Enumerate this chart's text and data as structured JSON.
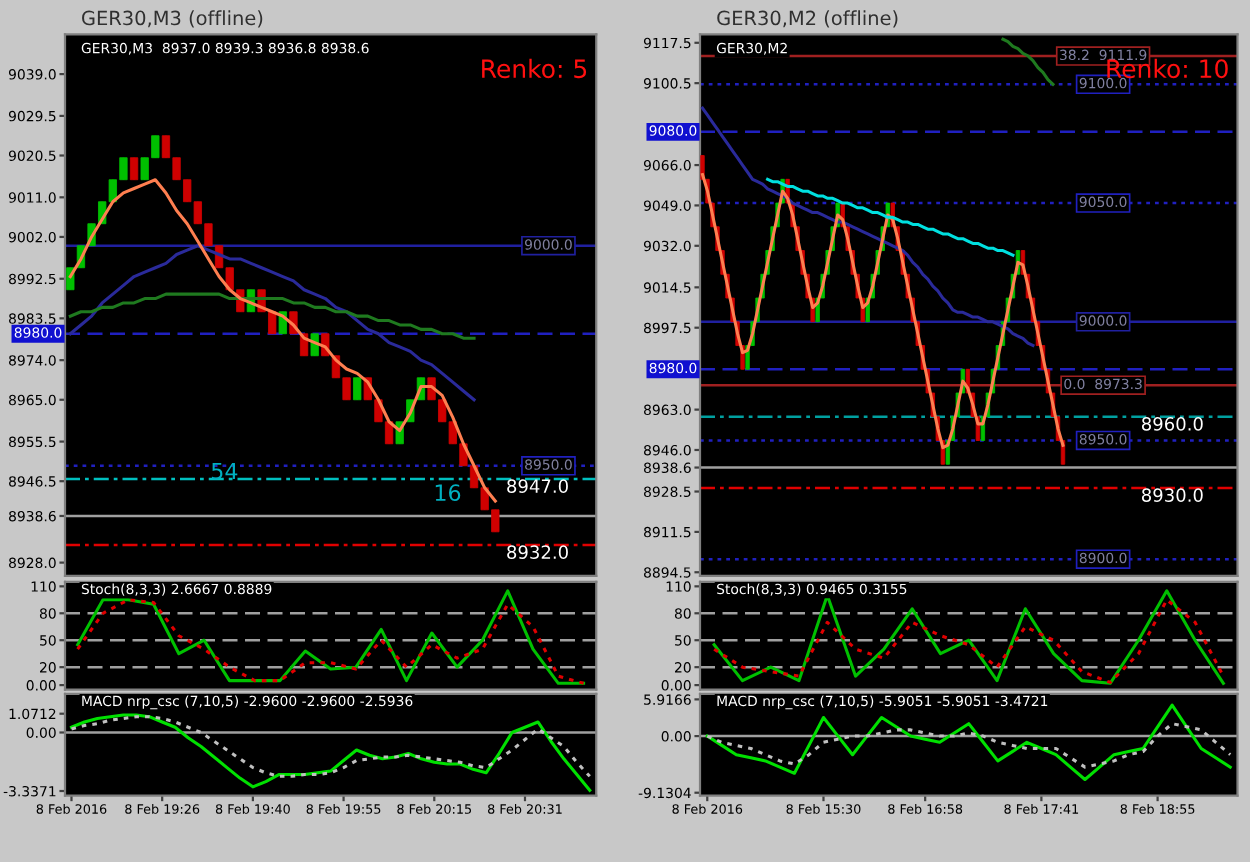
{
  "chart_data": [
    {
      "type": "candlestick",
      "title": "GER30,M3 (offline)",
      "annotations": [
        "GER30,M3  8937.0 8939.3 8936.8 8938.6",
        "Renko: 5",
        "54",
        "16"
      ],
      "categories": [
        null,
        null,
        null,
        null,
        null,
        null,
        null,
        null,
        null,
        null,
        null,
        null,
        null,
        null,
        null,
        null,
        null,
        null,
        null,
        null,
        null,
        null,
        null,
        null,
        null,
        null,
        null,
        null,
        null,
        null,
        null,
        null,
        null,
        null,
        null,
        null,
        null,
        null,
        null,
        null,
        null
      ],
      "ohlc": [
        [
          8990,
          8995,
          8990,
          8995
        ],
        [
          8995,
          9000,
          8995,
          9000
        ],
        [
          9000,
          9005,
          9000,
          9005
        ],
        [
          9005,
          9010,
          9005,
          9010
        ],
        [
          9010,
          9015,
          9010,
          9015
        ],
        [
          9015,
          9020,
          9015,
          9020
        ],
        [
          9020,
          9020,
          9015,
          9015
        ],
        [
          9015,
          9020,
          9015,
          9020
        ],
        [
          9020,
          9025,
          9020,
          9025
        ],
        [
          9025,
          9025,
          9020,
          9020
        ],
        [
          9020,
          9020,
          9015,
          9015
        ],
        [
          9015,
          9015,
          9010,
          9010
        ],
        [
          9010,
          9010,
          9005,
          9005
        ],
        [
          9005,
          9005,
          9000,
          9000
        ],
        [
          9000,
          9000,
          8995,
          8995
        ],
        [
          8995,
          8995,
          8990,
          8990
        ],
        [
          8990,
          8990,
          8985,
          8985
        ],
        [
          8985,
          8990,
          8985,
          8990
        ],
        [
          8990,
          8990,
          8985,
          8985
        ],
        [
          8985,
          8985,
          8980,
          8980
        ],
        [
          8980,
          8985,
          8980,
          8985
        ],
        [
          8985,
          8985,
          8980,
          8980
        ],
        [
          8980,
          8980,
          8975,
          8975
        ],
        [
          8975,
          8980,
          8975,
          8980
        ],
        [
          8980,
          8980,
          8975,
          8975
        ],
        [
          8975,
          8975,
          8970,
          8970
        ],
        [
          8970,
          8970,
          8965,
          8965
        ],
        [
          8965,
          8970,
          8965,
          8970
        ],
        [
          8970,
          8970,
          8965,
          8965
        ],
        [
          8965,
          8965,
          8960,
          8960
        ],
        [
          8960,
          8960,
          8955,
          8955
        ],
        [
          8955,
          8960,
          8955,
          8960
        ],
        [
          8960,
          8965,
          8960,
          8965
        ],
        [
          8965,
          8970,
          8965,
          8970
        ],
        [
          8970,
          8970,
          8965,
          8965
        ],
        [
          8965,
          8965,
          8960,
          8960
        ],
        [
          8960,
          8960,
          8955,
          8955
        ],
        [
          8955,
          8955,
          8950,
          8950
        ],
        [
          8950,
          8950,
          8945,
          8945
        ],
        [
          8945,
          8945,
          8940,
          8940
        ],
        [
          8940,
          8940,
          8935,
          8935
        ]
      ],
      "colors": [
        "#00c000",
        "#00c000",
        "#00c000",
        "#00c000",
        "#00c000",
        "#00c000",
        "#d00000",
        "#00c000",
        "#00c000",
        "#d00000",
        "#d00000",
        "#d00000",
        "#d00000",
        "#d00000",
        "#d00000",
        "#d00000",
        "#d00000",
        "#00c000",
        "#d00000",
        "#d00000",
        "#00c000",
        "#d00000",
        "#d00000",
        "#00c000",
        "#d00000",
        "#d00000",
        "#d00000",
        "#00c000",
        "#d00000",
        "#d00000",
        "#d00000",
        "#00c000",
        "#00c000",
        "#00c000",
        "#d00000",
        "#d00000",
        "#d00000",
        "#d00000",
        "#d00000",
        "#d00000",
        "#d00000"
      ],
      "series": [
        {
          "type": "line",
          "color": "#2a2a9a",
          "values": [
            8980,
            8982,
            8984,
            8987,
            8989,
            8991,
            8993,
            8994,
            8995,
            8996,
            8998,
            8999,
            9000,
            8999,
            8998,
            8997,
            8997,
            8996,
            8995,
            8994,
            8993,
            8992,
            8990,
            8989,
            8988,
            8986,
            8985,
            8983,
            8981,
            8980,
            8978,
            8977,
            8976,
            8974,
            8973,
            8971,
            8969,
            8967,
            8965,
            null,
            null
          ]
        },
        {
          "type": "line",
          "color": "#1f7a1f",
          "values": [
            8984,
            8985,
            8985,
            8986,
            8986,
            8987,
            8987,
            8988,
            8988,
            8989,
            8989,
            8989,
            8989,
            8989,
            8989,
            8988,
            8988,
            8988,
            8988,
            8988,
            8988,
            8987,
            8987,
            8986,
            8986,
            8985,
            8985,
            8984,
            8984,
            8983,
            8983,
            8982,
            8982,
            8981,
            8981,
            8980,
            8980,
            8979,
            8979,
            null,
            null
          ]
        },
        {
          "type": "line",
          "color": "#ff7f50",
          "values": [
            8993,
            8997,
            9002,
            9006,
            9010,
            9012,
            9013,
            9014,
            9015,
            9012,
            9008,
            9005,
            9001,
            8997,
            8993,
            8990,
            8988,
            8987,
            8986,
            8985,
            8984,
            8982,
            8979,
            8978,
            8977,
            8974,
            8972,
            8971,
            8969,
            8965,
            8960,
            8958,
            8962,
            8968,
            8968,
            8966,
            8961,
            8955,
            8950,
            8945,
            8942
          ]
        }
      ],
      "ylim": [
        8925,
        9048
      ],
      "yticks": [
        {
          "value": 8928,
          "label": "8928.0"
        },
        {
          "value": 8938.6,
          "label": "8938.6"
        },
        {
          "value": 8946.5,
          "label": "8946.5"
        },
        {
          "value": 8955.5,
          "label": "8955.5"
        },
        {
          "value": 8965,
          "label": "8965.0"
        },
        {
          "value": 8974,
          "label": "8974.0"
        },
        {
          "value": 8983.5,
          "label": "8983.5"
        },
        {
          "value": 8992.5,
          "label": "8992.5"
        },
        {
          "value": 9002,
          "label": "9002.0"
        },
        {
          "value": 9011,
          "label": "9011.0"
        },
        {
          "value": 9020.5,
          "label": "9020.5"
        },
        {
          "value": 9029.5,
          "label": "9029.5"
        },
        {
          "value": 9039,
          "label": "9039.0"
        }
      ],
      "tick_labels": "y",
      "ref_lines": [
        {
          "axis": "y",
          "value": 9000,
          "label": "9000.0",
          "color": "#2020a0",
          "line_style": "solid"
        },
        {
          "axis": "y",
          "value": 8980,
          "label": "8980.0",
          "color": "#2020c0",
          "line_style": "dashed"
        },
        {
          "axis": "y",
          "value": 8950,
          "label": "8950.0",
          "color": "#2020c0",
          "line_style": "dotted"
        },
        {
          "axis": "y",
          "value": 8947,
          "label": "8947.0",
          "color": "#00c0c0",
          "line_style": "dashdot"
        },
        {
          "axis": "y",
          "value": 8938.6,
          "color": "#a0a0a0",
          "line_style": "solid"
        },
        {
          "axis": "y",
          "value": 8932,
          "label": "8932.0",
          "color": "#e00000",
          "line_style": "dashdot"
        }
      ]
    },
    {
      "type": "candlestick",
      "title": "GER30,M2 (offline)",
      "annotations": [
        "GER30,M2",
        "Renko: 10"
      ],
      "categories": [
        null,
        null,
        null,
        null,
        null,
        null,
        null,
        null,
        null,
        null,
        null,
        null,
        null,
        null,
        null,
        null,
        null,
        null,
        null,
        null,
        null,
        null,
        null,
        null,
        null,
        null,
        null,
        null,
        null,
        null,
        null,
        null,
        null,
        null,
        null,
        null,
        null,
        null,
        null,
        null,
        null,
        null,
        null,
        null,
        null,
        null,
        null,
        null,
        null,
        null,
        null,
        null,
        null,
        null,
        null,
        null,
        null,
        null,
        null,
        null,
        null,
        null,
        null,
        null,
        null,
        null,
        null,
        null,
        null,
        null,
        null,
        null,
        null
      ],
      "ohlc": [
        [
          9070,
          9070,
          9060,
          9060
        ],
        [
          9060,
          9060,
          9050,
          9050
        ],
        [
          9050,
          9050,
          9040,
          9040
        ],
        [
          9040,
          9040,
          9030,
          9030
        ],
        [
          9030,
          9030,
          9020,
          9020
        ],
        [
          9020,
          9020,
          9010,
          9010
        ],
        [
          9010,
          9010,
          9000,
          9000
        ],
        [
          9000,
          9000,
          8990,
          8990
        ],
        [
          8990,
          8990,
          8980,
          8980
        ],
        [
          8980,
          8990,
          8980,
          8990
        ],
        [
          8990,
          9000,
          8990,
          9000
        ],
        [
          9000,
          9010,
          9000,
          9010
        ],
        [
          9010,
          9020,
          9010,
          9020
        ],
        [
          9020,
          9030,
          9020,
          9030
        ],
        [
          9030,
          9040,
          9030,
          9040
        ],
        [
          9040,
          9050,
          9040,
          9050
        ],
        [
          9050,
          9060,
          9050,
          9060
        ],
        [
          9060,
          9060,
          9050,
          9050
        ],
        [
          9050,
          9050,
          9040,
          9040
        ],
        [
          9040,
          9040,
          9030,
          9030
        ],
        [
          9030,
          9030,
          9020,
          9020
        ],
        [
          9020,
          9020,
          9010,
          9010
        ],
        [
          9010,
          9010,
          9000,
          9000
        ],
        [
          9000,
          9010,
          9000,
          9010
        ],
        [
          9010,
          9020,
          9010,
          9020
        ],
        [
          9020,
          9030,
          9020,
          9030
        ],
        [
          9030,
          9040,
          9030,
          9040
        ],
        [
          9040,
          9050,
          9040,
          9050
        ],
        [
          9050,
          9050,
          9040,
          9040
        ],
        [
          9040,
          9040,
          9030,
          9030
        ],
        [
          9030,
          9030,
          9020,
          9020
        ],
        [
          9020,
          9020,
          9010,
          9010
        ],
        [
          9010,
          9010,
          9000,
          9000
        ],
        [
          9000,
          9010,
          9000,
          9010
        ],
        [
          9010,
          9020,
          9010,
          9020
        ],
        [
          9020,
          9030,
          9020,
          9030
        ],
        [
          9030,
          9040,
          9030,
          9040
        ],
        [
          9040,
          9050,
          9040,
          9050
        ],
        [
          9050,
          9050,
          9040,
          9040
        ],
        [
          9040,
          9040,
          9030,
          9030
        ],
        [
          9030,
          9030,
          9020,
          9020
        ],
        [
          9020,
          9020,
          9010,
          9010
        ],
        [
          9010,
          9010,
          9000,
          9000
        ],
        [
          9000,
          9000,
          8990,
          8990
        ],
        [
          8990,
          8990,
          8980,
          8980
        ],
        [
          8980,
          8980,
          8970,
          8970
        ],
        [
          8970,
          8970,
          8960,
          8960
        ],
        [
          8960,
          8960,
          8950,
          8950
        ],
        [
          8950,
          8950,
          8940,
          8940
        ],
        [
          8940,
          8950,
          8940,
          8950
        ],
        [
          8950,
          8960,
          8950,
          8960
        ],
        [
          8960,
          8970,
          8960,
          8970
        ],
        [
          8970,
          8980,
          8970,
          8980
        ],
        [
          8980,
          8980,
          8970,
          8970
        ],
        [
          8970,
          8970,
          8960,
          8960
        ],
        [
          8960,
          8960,
          8950,
          8950
        ],
        [
          8950,
          8960,
          8950,
          8960
        ],
        [
          8960,
          8970,
          8960,
          8970
        ],
        [
          8970,
          8980,
          8970,
          8980
        ],
        [
          8980,
          8990,
          8980,
          8990
        ],
        [
          8990,
          9000,
          8990,
          9000
        ],
        [
          9000,
          9010,
          9000,
          9010
        ],
        [
          9010,
          9020,
          9010,
          9020
        ],
        [
          9020,
          9030,
          9020,
          9030
        ],
        [
          9030,
          9030,
          9020,
          9020
        ],
        [
          9020,
          9020,
          9010,
          9010
        ],
        [
          9010,
          9010,
          9000,
          9000
        ],
        [
          9000,
          9000,
          8990,
          8990
        ],
        [
          8990,
          8990,
          8980,
          8980
        ],
        [
          8980,
          8980,
          8970,
          8970
        ],
        [
          8970,
          8970,
          8960,
          8960
        ],
        [
          8960,
          8960,
          8950,
          8950
        ],
        [
          8950,
          8950,
          8940,
          8940
        ]
      ],
      "colors": [
        "#d00000",
        "#d00000",
        "#d00000",
        "#d00000",
        "#d00000",
        "#d00000",
        "#d00000",
        "#d00000",
        "#d00000",
        "#00c000",
        "#00c000",
        "#00c000",
        "#00c000",
        "#00c000",
        "#00c000",
        "#00c000",
        "#00c000",
        "#d00000",
        "#d00000",
        "#d00000",
        "#d00000",
        "#d00000",
        "#d00000",
        "#00c000",
        "#00c000",
        "#00c000",
        "#00c000",
        "#00c000",
        "#d00000",
        "#d00000",
        "#d00000",
        "#d00000",
        "#d00000",
        "#00c000",
        "#00c000",
        "#00c000",
        "#00c000",
        "#00c000",
        "#d00000",
        "#d00000",
        "#d00000",
        "#d00000",
        "#d00000",
        "#d00000",
        "#d00000",
        "#d00000",
        "#d00000",
        "#d00000",
        "#d00000",
        "#00c000",
        "#00c000",
        "#00c000",
        "#00c000",
        "#d00000",
        "#d00000",
        "#d00000",
        "#00c000",
        "#00c000",
        "#00c000",
        "#00c000",
        "#00c000",
        "#00c000",
        "#00c000",
        "#00c000",
        "#d00000",
        "#d00000",
        "#d00000",
        "#d00000",
        "#d00000",
        "#d00000",
        "#d00000",
        "#d00000",
        "#d00000"
      ],
      "series": [
        {
          "type": "line",
          "color": "#2a2a9a",
          "values": [
            9090,
            9087,
            9084,
            9081,
            9078,
            9075,
            9072,
            9069,
            9066,
            9063,
            9060,
            9059,
            9058,
            9056,
            9055,
            9054,
            9053,
            9052,
            9050,
            9049,
            9048,
            9047,
            9046,
            9046,
            9045,
            9044,
            9043,
            9042,
            9042,
            9041,
            9040,
            9039,
            9038,
            9037,
            9036,
            9035,
            9034,
            9033,
            9032,
            9031,
            9030,
            9028,
            9025,
            9023,
            9020,
            9018,
            9015,
            9013,
            9010,
            9008,
            9005,
            9004,
            9004,
            9003,
            9002,
            9002,
            9001,
            9000,
            9000,
            8999,
            8998,
            8997,
            8995,
            8994,
            8993,
            8991,
            8990,
            null,
            null,
            null,
            null,
            null,
            null
          ]
        },
        {
          "type": "line",
          "color": "#1f7a1f",
          "values": [
            null,
            null,
            null,
            null,
            null,
            null,
            null,
            null,
            null,
            null,
            null,
            null,
            null,
            null,
            null,
            null,
            null,
            null,
            null,
            null,
            null,
            null,
            null,
            null,
            null,
            null,
            null,
            null,
            null,
            null,
            null,
            null,
            null,
            null,
            null,
            null,
            null,
            null,
            null,
            null,
            null,
            null,
            null,
            null,
            null,
            null,
            null,
            null,
            null,
            null,
            null,
            null,
            null,
            null,
            null,
            null,
            null,
            null,
            null,
            null,
            9119,
            9118,
            9116,
            9115,
            9113,
            9112,
            9110,
            9107,
            9105,
            9102,
            9100,
            null,
            null
          ]
        },
        {
          "type": "line",
          "color": "#ff7f50",
          "values": [
            9062,
            9055,
            9045,
            9035,
            9025,
            9015,
            9005,
            8995,
            8987,
            8988,
            8995,
            9005,
            9015,
            9025,
            9035,
            9045,
            9055,
            9052,
            9045,
            9035,
            9025,
            9015,
            9006,
            9008,
            9015,
            9025,
            9035,
            9045,
            9043,
            9035,
            9025,
            9015,
            9006,
            9008,
            9015,
            9025,
            9035,
            9045,
            9043,
            9035,
            9025,
            9015,
            9005,
            8995,
            8985,
            8975,
            8965,
            8955,
            8947,
            8948,
            8955,
            8965,
            8975,
            8972,
            8965,
            8957,
            8957,
            8965,
            8975,
            8985,
            8995,
            9005,
            9015,
            9025,
            9024,
            9015,
            9005,
            8995,
            8985,
            8975,
            8965,
            8955,
            8948
          ]
        },
        {
          "type": "line",
          "color": "#00e0e0",
          "values": [
            null,
            null,
            null,
            null,
            null,
            null,
            null,
            null,
            null,
            null,
            null,
            null,
            null,
            9060,
            9059,
            9059,
            9058,
            9057,
            9057,
            9056,
            9055,
            9055,
            9054,
            9053,
            9053,
            9052,
            9052,
            9051,
            9050,
            9050,
            9049,
            9048,
            9048,
            9047,
            9046,
            9046,
            9045,
            9044,
            9044,
            9043,
            9042,
            9042,
            9041,
            9041,
            9040,
            9039,
            9039,
            9038,
            9037,
            9037,
            9036,
            9035,
            9035,
            9034,
            9033,
            9033,
            9032,
            9031,
            9031,
            9030,
            9030,
            9029,
            9028,
            null,
            null,
            null,
            null,
            null,
            null,
            null,
            null,
            null,
            null
          ]
        }
      ],
      "ylim": [
        8893,
        9121
      ],
      "yticks": [
        {
          "value": 8894.5,
          "label": "8894.5"
        },
        {
          "value": 8911.5,
          "label": "8911.5"
        },
        {
          "value": 8928.5,
          "label": "8928.5"
        },
        {
          "value": 8938.6,
          "label": "8938.6"
        },
        {
          "value": 8946,
          "label": "8946.0"
        },
        {
          "value": 8963,
          "label": "8963.0"
        },
        {
          "value": 8997.5,
          "label": "8997.5"
        },
        {
          "value": 9014.5,
          "label": "9014.5"
        },
        {
          "value": 9032,
          "label": "9032.0"
        },
        {
          "value": 9049,
          "label": "9049.0"
        },
        {
          "value": 9066,
          "label": "9066.0"
        },
        {
          "value": 9100.5,
          "label": "9100.5"
        },
        {
          "value": 9117.5,
          "label": "9117.5"
        }
      ],
      "tick_labels": "y",
      "ref_lines": [
        {
          "axis": "y",
          "value": 9111.9,
          "label": "38.2  9111.9",
          "color": "#a02020",
          "line_style": "solid"
        },
        {
          "axis": "y",
          "value": 9100,
          "label": "9100.0",
          "color": "#2020c0",
          "line_style": "dotted"
        },
        {
          "axis": "y",
          "value": 9080,
          "label": "9080.0",
          "color": "#2020c0",
          "line_style": "dashed"
        },
        {
          "axis": "y",
          "value": 9050,
          "label": "9050.0",
          "color": "#2020c0",
          "line_style": "dotted"
        },
        {
          "axis": "y",
          "value": 9000,
          "label": "9000.0",
          "color": "#2020a0",
          "line_style": "solid"
        },
        {
          "axis": "y",
          "value": 8980,
          "label": "8980.0",
          "color": "#2020c0",
          "line_style": "dashed"
        },
        {
          "axis": "y",
          "value": 8973.3,
          "label": "0.0  8973.3",
          "color": "#a02020",
          "line_style": "solid"
        },
        {
          "axis": "y",
          "value": 8960,
          "label": "8960.0",
          "color": "#00a0a0",
          "line_style": "dashdot"
        },
        {
          "axis": "y",
          "value": 8950,
          "label": "8950.0",
          "color": "#2020c0",
          "line_style": "dotted"
        },
        {
          "axis": "y",
          "value": 8938.6,
          "color": "#a0a0a0",
          "line_style": "solid"
        },
        {
          "axis": "y",
          "value": 8930,
          "label": "8930.0",
          "color": "#e00000",
          "line_style": "dashdot"
        },
        {
          "axis": "y",
          "value": 8900,
          "label": "8900.0",
          "color": "#2020c0",
          "line_style": "dotted"
        }
      ]
    },
    {
      "type": "line",
      "annotations": [
        "Stoch(8,3,3) 2.6667 0.8889"
      ],
      "categories": [
        null,
        null,
        null,
        null,
        null,
        null,
        null,
        null,
        null,
        null,
        null,
        null,
        null,
        null,
        null,
        null,
        null,
        null,
        null,
        null,
        null
      ],
      "series": [
        {
          "color": "#00c000",
          "values": [
            45,
            95,
            95,
            90,
            35,
            50,
            5,
            5,
            5,
            38,
            18,
            20,
            62,
            5,
            58,
            20,
            50,
            105,
            40,
            2,
            2
          ]
        },
        {
          "color": "#e00000",
          "line_style": "dotted",
          "values": [
            40,
            80,
            95,
            92,
            55,
            40,
            20,
            5,
            5,
            25,
            25,
            18,
            50,
            20,
            45,
            30,
            40,
            90,
            65,
            10,
            2
          ]
        }
      ],
      "ylim": [
        -5,
        115
      ],
      "yticks": [
        {
          "value": 0,
          "label": "0.00"
        },
        20,
        50,
        80,
        110
      ],
      "tick_labels": "y",
      "ref_lines": [
        {
          "axis": "y",
          "value": 20,
          "color": "#a0a0a0",
          "line_style": "dashed"
        },
        {
          "axis": "y",
          "value": 50,
          "color": "#a0a0a0",
          "line_style": "dashed"
        },
        {
          "axis": "y",
          "value": 80,
          "color": "#a0a0a0",
          "line_style": "dashed"
        }
      ]
    },
    {
      "type": "line",
      "annotations": [
        "Stoch(8,3,3) 0.9465 0.3155"
      ],
      "categories": [
        null,
        null,
        null,
        null,
        null,
        null,
        null,
        null,
        null,
        null,
        null,
        null,
        null,
        null,
        null,
        null,
        null,
        null,
        null
      ],
      "series": [
        {
          "color": "#00c000",
          "values": [
            45,
            5,
            20,
            5,
            100,
            10,
            40,
            85,
            35,
            50,
            5,
            85,
            35,
            5,
            2,
            50,
            105,
            50,
            2
          ]
        },
        {
          "color": "#e00000",
          "line_style": "dotted",
          "values": [
            40,
            20,
            15,
            10,
            70,
            40,
            30,
            70,
            55,
            45,
            20,
            65,
            50,
            15,
            3,
            35,
            95,
            70,
            10
          ]
        }
      ],
      "ylim": [
        -5,
        115
      ],
      "yticks": [
        {
          "value": 0,
          "label": "0.00"
        },
        20,
        50,
        80,
        110
      ],
      "tick_labels": "y",
      "ref_lines": [
        {
          "axis": "y",
          "value": 20,
          "color": "#a0a0a0",
          "line_style": "dashed"
        },
        {
          "axis": "y",
          "value": 50,
          "color": "#a0a0a0",
          "line_style": "dashed"
        },
        {
          "axis": "y",
          "value": 80,
          "color": "#a0a0a0",
          "line_style": "dashed"
        }
      ]
    },
    {
      "type": "line",
      "annotations": [
        "MACD nrp_csc (7,10,5) -2.9600 -2.9600 -2.5936"
      ],
      "categories": [
        "8 Feb 2016",
        null,
        null,
        null,
        null,
        null,
        null,
        "8 Feb 19:26",
        null,
        null,
        null,
        null,
        null,
        null,
        "8 Feb 19:40",
        null,
        null,
        null,
        null,
        null,
        null,
        "8 Feb 19:55",
        null,
        null,
        null,
        null,
        null,
        null,
        "8 Feb 20:15",
        null,
        null,
        null,
        null,
        null,
        null,
        "8 Feb 20:31",
        null,
        null,
        null,
        null,
        null
      ],
      "series": [
        {
          "color": "#00e000",
          "values": [
            0.3,
            0.6,
            0.8,
            0.9,
            1.0,
            1.0,
            0.9,
            0.6,
            0.3,
            -0.3,
            -0.8,
            -1.4,
            -2.0,
            -2.6,
            -3.1,
            -2.8,
            -2.4,
            -2.4,
            -2.4,
            -2.3,
            -2.2,
            -1.6,
            -1.0,
            -1.3,
            -1.5,
            -1.4,
            -1.2,
            -1.5,
            -1.7,
            -1.8,
            -1.8,
            -2.1,
            -2.3,
            -1.2,
            0.0,
            0.3,
            0.6,
            -0.5,
            -1.5,
            -2.4,
            -3.3
          ]
        },
        {
          "color": "#c0c0c0",
          "line_style": "dotted",
          "values": [
            0.2,
            0.4,
            0.5,
            0.7,
            0.8,
            0.9,
            0.9,
            0.8,
            0.6,
            0.3,
            0.0,
            -0.5,
            -1.0,
            -1.5,
            -2.0,
            -2.3,
            -2.5,
            -2.5,
            -2.4,
            -2.4,
            -2.3,
            -2.0,
            -1.6,
            -1.5,
            -1.4,
            -1.4,
            -1.3,
            -1.4,
            -1.5,
            -1.6,
            -1.7,
            -1.9,
            -2.0,
            -1.5,
            -1.0,
            -0.4,
            0.2,
            -0.3,
            -0.8,
            -1.7,
            -2.5
          ]
        }
      ],
      "ylim": [
        -3.6,
        2.2
      ],
      "yticks": [
        {
          "value": -3.3371,
          "label": "-3.3371"
        },
        {
          "value": 0,
          "label": "0.00"
        },
        {
          "value": 1.0712,
          "label": "1.0712"
        }
      ],
      "ref_lines": [
        {
          "axis": "y",
          "value": 0,
          "color": "#a0a0a0",
          "line_style": "solid"
        }
      ]
    },
    {
      "type": "line",
      "annotations": [
        "MACD nrp_csc (7,10,5) -5.9051 -5.9051 -3.4721"
      ],
      "categories": [
        "8 Feb 2016",
        null,
        null,
        null,
        null,
        null,
        null,
        null,
        "8 Feb 15:30",
        null,
        null,
        null,
        null,
        null,
        null,
        "8 Feb 16:58",
        null,
        null,
        null,
        null,
        null,
        null,
        null,
        "8 Feb 17:41",
        null,
        null,
        null,
        null,
        null,
        null,
        null,
        "8 Feb 18:55",
        null,
        null,
        null,
        null,
        null
      ],
      "series": [
        {
          "color": "#00e000",
          "values": [
            0,
            -1.5,
            -3,
            -3.5,
            -4,
            -5,
            -6,
            -1.5,
            3,
            0,
            -3,
            0,
            3,
            1.5,
            0,
            -0.5,
            -1,
            0.5,
            2,
            -1,
            -4,
            -2.5,
            -1,
            -2,
            -3,
            -5,
            -7,
            -5,
            -3,
            -2.5,
            -2,
            1.5,
            5,
            1.5,
            -2,
            -3.5,
            -5
          ]
        },
        {
          "color": "#c0c0c0",
          "line_style": "dotted",
          "values": [
            0,
            -1,
            -1.5,
            -2,
            -3,
            -4,
            -4.5,
            -3,
            -1,
            -0.5,
            0,
            0,
            0.5,
            1,
            1,
            0.5,
            0,
            0,
            0.5,
            0,
            -1,
            -1.5,
            -2,
            -2,
            -2,
            -3.5,
            -5,
            -4.5,
            -4,
            -3,
            -2.5,
            0,
            2,
            1.5,
            1,
            -1,
            -3
          ]
        }
      ],
      "ylim": [
        -9.6,
        6.8
      ],
      "yticks": [
        {
          "value": -9.1304,
          "label": "-9.1304"
        },
        {
          "value": 0,
          "label": "0.00"
        },
        {
          "value": 5.9166,
          "label": "5.9166"
        }
      ],
      "ref_lines": [
        {
          "axis": "y",
          "value": 0,
          "color": "#a0a0a0",
          "line_style": "solid"
        }
      ]
    }
  ]
}
